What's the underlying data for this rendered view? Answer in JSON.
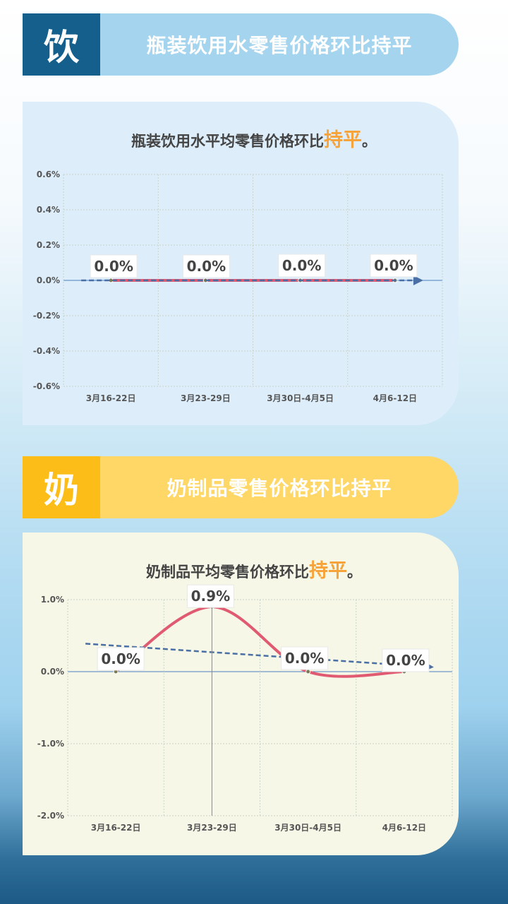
{
  "sections": [
    {
      "badge": "饮",
      "header_title": "瓶装饮用水零售价格环比持平",
      "chart_title_prefix": "瓶装饮用水平均零售价格环比",
      "chart_title_highlight": "持平",
      "chart_title_suffix": "。"
    },
    {
      "badge": "奶",
      "header_title": "奶制品零售价格环比持平",
      "chart_title_prefix": "奶制品平均零售价格环比",
      "chart_title_highlight": "持平",
      "chart_title_suffix": "。"
    }
  ],
  "colors": {
    "water_badge": "#145f8c",
    "water_header": "#a5d4ee",
    "milk_badge": "#fdbd18",
    "milk_header": "#ffd767",
    "highlight": "#f6a33a",
    "line": "#e05a72",
    "trend": "#4a6fa5"
  },
  "chart_data": [
    {
      "type": "line",
      "categories": [
        "3月16-22日",
        "3月23-29日",
        "3月30日-4月5日",
        "4月6-12日"
      ],
      "values": [
        0.0,
        0.0,
        0.0,
        0.0
      ],
      "data_labels": [
        "0.0%",
        "0.0%",
        "0.0%",
        "0.0%"
      ],
      "ylim": [
        -0.6,
        0.6
      ],
      "yticks": [
        0.6,
        0.4,
        0.2,
        0.0,
        -0.2,
        -0.4,
        -0.6
      ],
      "ytick_labels": [
        "0.6%",
        "0.4%",
        "0.2%",
        "0.0%",
        "-0.2%",
        "-0.4%",
        "-0.6%"
      ],
      "trendline": "linear",
      "grid": true
    },
    {
      "type": "line",
      "categories": [
        "3月16-22日",
        "3月23-29日",
        "3月30日-4月5日",
        "4月6-12日"
      ],
      "values": [
        0.0,
        0.9,
        0.0,
        0.0
      ],
      "data_labels": [
        "0.0%",
        "0.9%",
        "0.0%",
        "0.0%"
      ],
      "ylim": [
        -2.0,
        1.0
      ],
      "yticks": [
        1.0,
        0.0,
        -1.0,
        -2.0
      ],
      "ytick_labels": [
        "1.0%",
        "0.0%",
        "-1.0%",
        "-2.0%"
      ],
      "trendline": "linear",
      "grid": true
    }
  ]
}
